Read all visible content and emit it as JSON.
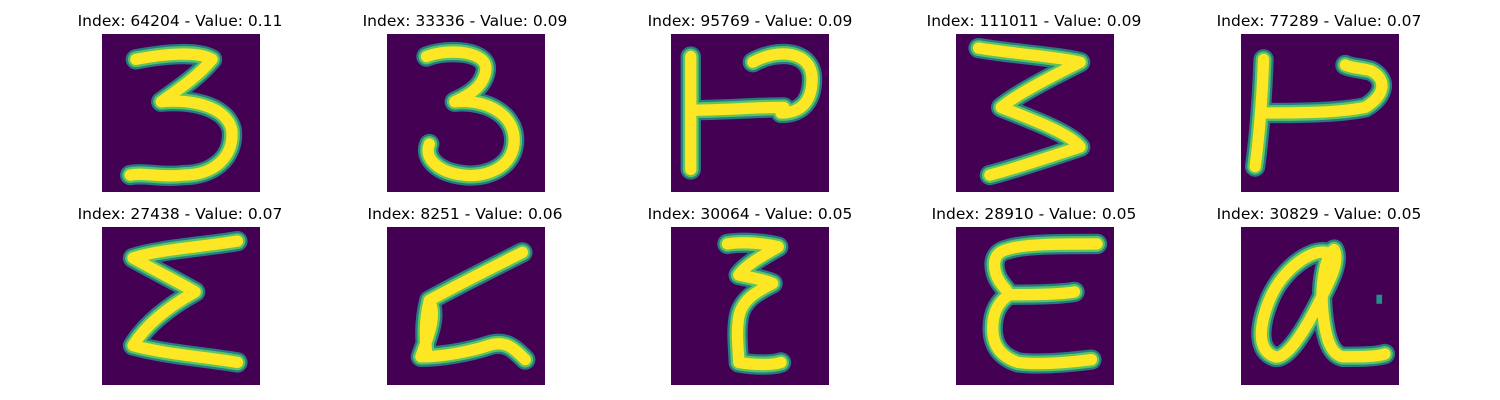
{
  "colors": {
    "background": "#440154",
    "stroke_outer": "#21918c",
    "stroke_mid": "#5ec962",
    "stroke_core": "#fde725"
  },
  "panels": [
    {
      "title": "Index: 64204 - Value: 0.11",
      "glyph": "digit-3"
    },
    {
      "title": "Index: 33336 - Value: 0.09",
      "glyph": "digit-3"
    },
    {
      "title": "Index: 95769 - Value: 0.09",
      "glyph": "letter-p-sideways"
    },
    {
      "title": "Index: 111011 - Value: 0.09",
      "glyph": "digit-3-angular"
    },
    {
      "title": "Index: 77289 - Value: 0.07",
      "glyph": "letter-p-sideways-thin"
    },
    {
      "title": "Index: 27438 - Value: 0.07",
      "glyph": "sigma"
    },
    {
      "title": "Index: 8251 - Value: 0.06",
      "glyph": "z-shape"
    },
    {
      "title": "Index: 30064 - Value: 0.05",
      "glyph": "epsilon-narrow"
    },
    {
      "title": "Index: 28910 - Value: 0.05",
      "glyph": "epsilon"
    },
    {
      "title": "Index: 30829 - Value: 0.05",
      "glyph": "letter-a"
    }
  ]
}
